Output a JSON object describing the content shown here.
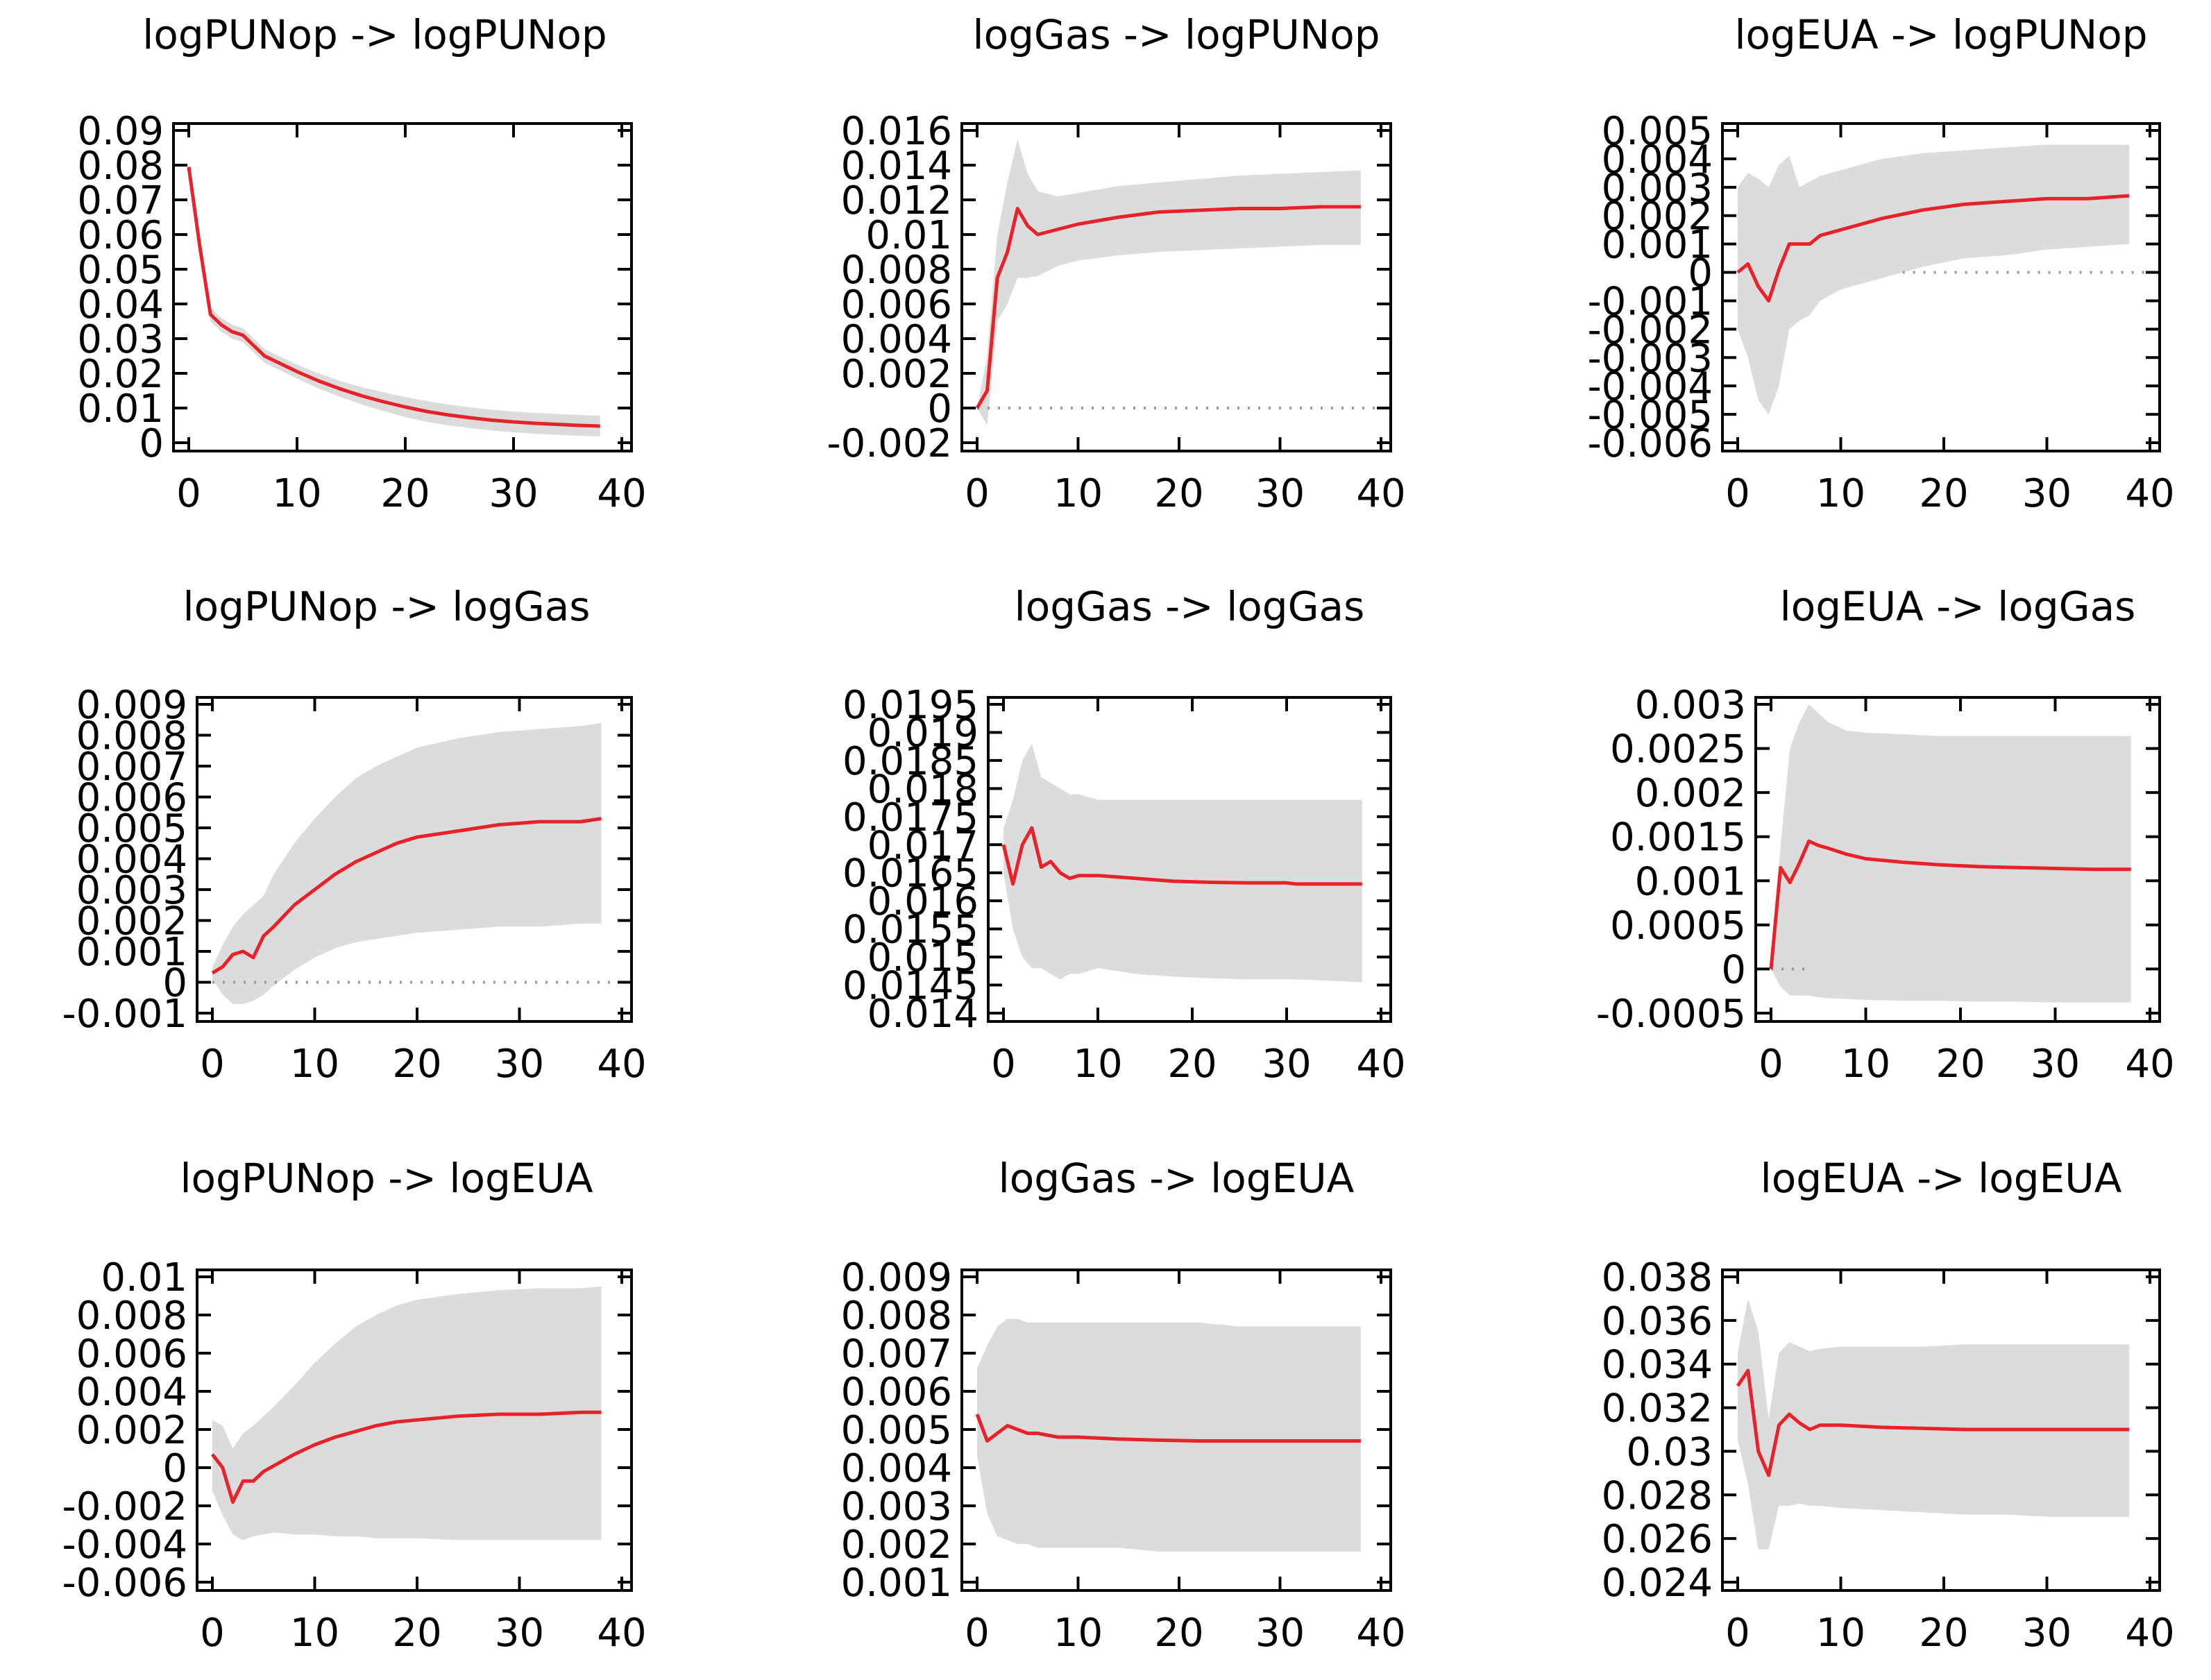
{
  "colors": {
    "line": "#e8222a",
    "band": "#dcdcdc",
    "frame": "#000000",
    "zero": "#999999",
    "background": "#ffffff"
  },
  "chart_data": [
    {
      "type": "line",
      "title": "logPUNop -> logPUNop",
      "xlim": [
        0,
        40
      ],
      "xticks": [
        "0",
        "10",
        "20",
        "30",
        "40"
      ],
      "ylim": [
        0,
        0.09
      ],
      "yticks": [
        "0",
        "0.01",
        "0.02",
        "0.03",
        "0.04",
        "0.05",
        "0.06",
        "0.07",
        "0.08",
        "0.09"
      ],
      "zero_line": false,
      "x": [
        0,
        1,
        2,
        3,
        4,
        5,
        6,
        7,
        8,
        10,
        12,
        14,
        16,
        18,
        20,
        22,
        24,
        26,
        28,
        30,
        32,
        34,
        36,
        38
      ],
      "y": [
        0.0795,
        0.057,
        0.037,
        0.034,
        0.032,
        0.031,
        0.028,
        0.025,
        0.0235,
        0.0205,
        0.0178,
        0.0155,
        0.0135,
        0.0118,
        0.0103,
        0.009,
        0.008,
        0.0072,
        0.0065,
        0.006,
        0.0056,
        0.0053,
        0.005,
        0.0048
      ],
      "band_upper": [
        0.0795,
        0.058,
        0.039,
        0.036,
        0.034,
        0.033,
        0.03,
        0.027,
        0.0255,
        0.0225,
        0.02,
        0.0178,
        0.016,
        0.0145,
        0.0132,
        0.012,
        0.011,
        0.0102,
        0.0095,
        0.009,
        0.0086,
        0.0083,
        0.008,
        0.0078
      ],
      "band_lower": [
        0.0795,
        0.056,
        0.035,
        0.032,
        0.03,
        0.029,
        0.026,
        0.023,
        0.0215,
        0.0185,
        0.0156,
        0.0132,
        0.011,
        0.0091,
        0.0074,
        0.006,
        0.005,
        0.0042,
        0.0035,
        0.003,
        0.0026,
        0.0023,
        0.002,
        0.0018
      ]
    },
    {
      "type": "line",
      "title": "logGas -> logPUNop",
      "xlim": [
        0,
        40
      ],
      "xticks": [
        "0",
        "10",
        "20",
        "30",
        "40"
      ],
      "ylim": [
        -0.002,
        0.016
      ],
      "yticks": [
        "-0.002",
        "0",
        "0.002",
        "0.004",
        "0.006",
        "0.008",
        "0.01",
        "0.012",
        "0.014",
        "0.016"
      ],
      "zero_line": true,
      "x": [
        0,
        1,
        2,
        3,
        4,
        5,
        6,
        8,
        10,
        14,
        18,
        22,
        26,
        30,
        34,
        38
      ],
      "y": [
        0.0,
        0.001,
        0.0075,
        0.009,
        0.0115,
        0.0105,
        0.01,
        0.0103,
        0.0106,
        0.011,
        0.0113,
        0.0114,
        0.0115,
        0.0115,
        0.0116,
        0.0116
      ],
      "band_upper": [
        0.0,
        0.003,
        0.01,
        0.013,
        0.0155,
        0.0135,
        0.0125,
        0.0122,
        0.0124,
        0.0128,
        0.013,
        0.0132,
        0.0134,
        0.0135,
        0.0136,
        0.0137
      ],
      "band_lower": [
        0.0,
        -0.001,
        0.005,
        0.006,
        0.0075,
        0.0075,
        0.0076,
        0.0082,
        0.0085,
        0.0088,
        0.009,
        0.0091,
        0.0092,
        0.0093,
        0.0094,
        0.0094
      ]
    },
    {
      "type": "line",
      "title": "logEUA -> logPUNop",
      "xlim": [
        0,
        40
      ],
      "xticks": [
        "0",
        "10",
        "20",
        "30",
        "40"
      ],
      "ylim": [
        -0.006,
        0.005
      ],
      "yticks": [
        "-0.006",
        "-0.005",
        "-0.004",
        "-0.003",
        "-0.002",
        "-0.001",
        "0",
        "0.001",
        "0.002",
        "0.003",
        "0.004",
        "0.005"
      ],
      "zero_line": true,
      "zero_line_from": 16,
      "x": [
        0,
        1,
        2,
        3,
        4,
        5,
        6,
        7,
        8,
        10,
        14,
        18,
        22,
        26,
        30,
        34,
        38
      ],
      "y": [
        0.0,
        0.0003,
        -0.0005,
        -0.001,
        0.0001,
        0.001,
        0.001,
        0.001,
        0.0013,
        0.0015,
        0.0019,
        0.0022,
        0.0024,
        0.0025,
        0.0026,
        0.0026,
        0.0027
      ],
      "band_upper": [
        0.003,
        0.0035,
        0.0033,
        0.003,
        0.0038,
        0.0041,
        0.003,
        0.0032,
        0.0034,
        0.0036,
        0.004,
        0.0042,
        0.0043,
        0.0044,
        0.0045,
        0.0045,
        0.0045
      ],
      "band_lower": [
        -0.002,
        -0.003,
        -0.0045,
        -0.005,
        -0.004,
        -0.002,
        -0.0017,
        -0.0015,
        -0.001,
        -0.0006,
        -0.0002,
        0.0002,
        0.0005,
        0.0006,
        0.0008,
        0.0009,
        0.001
      ]
    },
    {
      "type": "line",
      "title": "logPUNop -> logGas",
      "xlim": [
        0,
        40
      ],
      "xticks": [
        "0",
        "10",
        "20",
        "30",
        "40"
      ],
      "ylim": [
        -0.001,
        0.009
      ],
      "yticks": [
        "-0.001",
        "0",
        "0.001",
        "0.002",
        "0.003",
        "0.004",
        "0.005",
        "0.006",
        "0.007",
        "0.008",
        "0.009"
      ],
      "zero_line": true,
      "x": [
        0,
        1,
        2,
        3,
        4,
        5,
        6,
        8,
        10,
        12,
        14,
        16,
        18,
        20,
        24,
        28,
        32,
        36,
        38
      ],
      "y": [
        0.0003,
        0.0005,
        0.0009,
        0.001,
        0.0008,
        0.0015,
        0.0018,
        0.0025,
        0.003,
        0.0035,
        0.0039,
        0.0042,
        0.0045,
        0.0047,
        0.0049,
        0.0051,
        0.0052,
        0.0052,
        0.0053
      ],
      "band_upper": [
        0.0005,
        0.0012,
        0.0018,
        0.0022,
        0.0025,
        0.0028,
        0.0035,
        0.0045,
        0.0053,
        0.006,
        0.0066,
        0.007,
        0.0073,
        0.0076,
        0.0079,
        0.0081,
        0.0082,
        0.0083,
        0.0084
      ],
      "band_lower": [
        0.0001,
        -0.0004,
        -0.0007,
        -0.0007,
        -0.0006,
        -0.0004,
        -0.0001,
        0.0004,
        0.0008,
        0.0011,
        0.0013,
        0.0014,
        0.0015,
        0.0016,
        0.0017,
        0.0018,
        0.0018,
        0.0019,
        0.0019
      ]
    },
    {
      "type": "line",
      "title": "logGas -> logGas",
      "xlim": [
        0,
        40
      ],
      "xticks": [
        "0",
        "10",
        "20",
        "30",
        "40"
      ],
      "ylim": [
        0.014,
        0.0195
      ],
      "yticks": [
        "0.014",
        "0.0145",
        "0.015",
        "0.0155",
        "0.016",
        "0.0165",
        "0.017",
        "0.0175",
        "0.018",
        "0.0185",
        "0.019",
        "0.0195"
      ],
      "zero_line": false,
      "x": [
        0,
        1,
        2,
        3,
        4,
        5,
        6,
        7,
        8,
        10,
        14,
        18,
        22,
        26,
        30,
        31,
        34,
        38
      ],
      "y": [
        0.017,
        0.0163,
        0.017,
        0.0173,
        0.0166,
        0.0167,
        0.0165,
        0.0164,
        0.01645,
        0.01645,
        0.0164,
        0.01635,
        0.01633,
        0.01632,
        0.01632,
        0.0163,
        0.0163,
        0.0163
      ],
      "band_upper": [
        0.0173,
        0.0178,
        0.0185,
        0.0188,
        0.0182,
        0.0181,
        0.018,
        0.0179,
        0.0179,
        0.0178,
        0.0178,
        0.0178,
        0.0178,
        0.0178,
        0.0178,
        0.0178,
        0.0178,
        0.0178
      ],
      "band_lower": [
        0.0165,
        0.0155,
        0.015,
        0.0148,
        0.0148,
        0.0147,
        0.0146,
        0.0147,
        0.0147,
        0.0148,
        0.0147,
        0.01465,
        0.01462,
        0.0146,
        0.0146,
        0.0146,
        0.01458,
        0.01455
      ]
    },
    {
      "type": "line",
      "title": "logEUA -> logGas",
      "xlim": [
        0,
        40
      ],
      "xticks": [
        "0",
        "10",
        "20",
        "30",
        "40"
      ],
      "ylim": [
        -0.0005,
        0.003
      ],
      "yticks": [
        "-0.0005",
        "0",
        "0.0005",
        "0.001",
        "0.0015",
        "0.002",
        "0.0025",
        "0.003"
      ],
      "zero_line": true,
      "zero_line_to": 4,
      "x": [
        0,
        1,
        2,
        3,
        4,
        5,
        6,
        8,
        10,
        14,
        18,
        22,
        26,
        30,
        34,
        38
      ],
      "y": [
        0.0,
        0.00115,
        0.00098,
        0.0012,
        0.00145,
        0.0014,
        0.00137,
        0.0013,
        0.00125,
        0.00121,
        0.00118,
        0.00116,
        0.00115,
        0.00114,
        0.00113,
        0.00113
      ],
      "band_upper": [
        0.0,
        0.0014,
        0.0025,
        0.0028,
        0.003,
        0.0029,
        0.0028,
        0.0027,
        0.00268,
        0.00266,
        0.00264,
        0.00264,
        0.00264,
        0.00264,
        0.00264,
        0.00264
      ],
      "band_lower": [
        0.0,
        -0.0002,
        -0.0003,
        -0.0003,
        -0.0003,
        -0.00032,
        -0.00033,
        -0.00034,
        -0.00035,
        -0.00036,
        -0.00036,
        -0.00037,
        -0.00037,
        -0.00038,
        -0.00038,
        -0.00038
      ]
    },
    {
      "type": "line",
      "title": "logPUNop -> logEUA",
      "xlim": [
        0,
        40
      ],
      "xticks": [
        "0",
        "10",
        "20",
        "30",
        "40"
      ],
      "ylim": [
        -0.006,
        0.01
      ],
      "yticks": [
        "-0.006",
        "-0.004",
        "-0.002",
        "0",
        "0.002",
        "0.004",
        "0.006",
        "0.008",
        "0.01"
      ],
      "zero_line": false,
      "x": [
        0,
        1,
        2,
        3,
        4,
        5,
        6,
        8,
        10,
        12,
        14,
        16,
        18,
        20,
        24,
        28,
        32,
        36,
        38
      ],
      "y": [
        0.0007,
        0.0,
        -0.0018,
        -0.0007,
        -0.0007,
        -0.0002,
        0.0001,
        0.0007,
        0.0012,
        0.0016,
        0.0019,
        0.0022,
        0.0024,
        0.0025,
        0.0027,
        0.0028,
        0.0028,
        0.0029,
        0.0029
      ],
      "band_upper": [
        0.0025,
        0.0022,
        0.001,
        0.0018,
        0.0022,
        0.0027,
        0.0032,
        0.0043,
        0.0055,
        0.0065,
        0.0074,
        0.008,
        0.0085,
        0.0088,
        0.0091,
        0.0093,
        0.0094,
        0.0094,
        0.0095
      ],
      "band_lower": [
        -0.0012,
        -0.0025,
        -0.0035,
        -0.0038,
        -0.0036,
        -0.0035,
        -0.0034,
        -0.0035,
        -0.0035,
        -0.0036,
        -0.0036,
        -0.0037,
        -0.0037,
        -0.0037,
        -0.0038,
        -0.0038,
        -0.0038,
        -0.0038,
        -0.0038
      ]
    },
    {
      "type": "line",
      "title": "logGas -> logEUA",
      "xlim": [
        0,
        40
      ],
      "xticks": [
        "0",
        "10",
        "20",
        "30",
        "40"
      ],
      "ylim": [
        0.001,
        0.009
      ],
      "yticks": [
        "0.001",
        "0.002",
        "0.003",
        "0.004",
        "0.005",
        "0.006",
        "0.007",
        "0.008",
        "0.009"
      ],
      "zero_line": false,
      "x": [
        0,
        1,
        2,
        3,
        4,
        5,
        6,
        8,
        10,
        14,
        18,
        22,
        26,
        30,
        34,
        38
      ],
      "y": [
        0.0054,
        0.0047,
        0.0049,
        0.0051,
        0.005,
        0.0049,
        0.0049,
        0.0048,
        0.0048,
        0.00475,
        0.00472,
        0.0047,
        0.0047,
        0.0047,
        0.0047,
        0.0047
      ],
      "band_upper": [
        0.0066,
        0.0072,
        0.0077,
        0.0079,
        0.0079,
        0.0078,
        0.0078,
        0.0078,
        0.0078,
        0.0078,
        0.0078,
        0.0078,
        0.0077,
        0.0077,
        0.0077,
        0.0077
      ],
      "band_lower": [
        0.0043,
        0.0028,
        0.0022,
        0.0021,
        0.002,
        0.002,
        0.0019,
        0.0019,
        0.0019,
        0.0019,
        0.0018,
        0.0018,
        0.0018,
        0.0018,
        0.0018,
        0.0018
      ]
    },
    {
      "type": "line",
      "title": "logEUA -> logEUA",
      "xlim": [
        0,
        40
      ],
      "xticks": [
        "0",
        "10",
        "20",
        "30",
        "40"
      ],
      "ylim": [
        0.024,
        0.038
      ],
      "yticks": [
        "0.024",
        "0.026",
        "0.028",
        "0.03",
        "0.032",
        "0.034",
        "0.036",
        "0.038"
      ],
      "zero_line": false,
      "x": [
        0,
        1,
        2,
        3,
        4,
        5,
        6,
        7,
        8,
        10,
        14,
        18,
        22,
        26,
        30,
        34,
        38
      ],
      "y": [
        0.033,
        0.0337,
        0.03,
        0.0289,
        0.0312,
        0.0317,
        0.0313,
        0.031,
        0.0312,
        0.0312,
        0.0311,
        0.03105,
        0.031,
        0.031,
        0.031,
        0.031,
        0.031
      ],
      "band_upper": [
        0.0345,
        0.037,
        0.0355,
        0.0315,
        0.0345,
        0.035,
        0.0348,
        0.0346,
        0.0347,
        0.0348,
        0.0348,
        0.0348,
        0.0349,
        0.0349,
        0.0349,
        0.0349,
        0.0349
      ],
      "band_lower": [
        0.0305,
        0.0285,
        0.0255,
        0.0255,
        0.0275,
        0.0275,
        0.0276,
        0.0275,
        0.0275,
        0.0274,
        0.0273,
        0.0272,
        0.0271,
        0.0271,
        0.027,
        0.027,
        0.027
      ]
    }
  ]
}
